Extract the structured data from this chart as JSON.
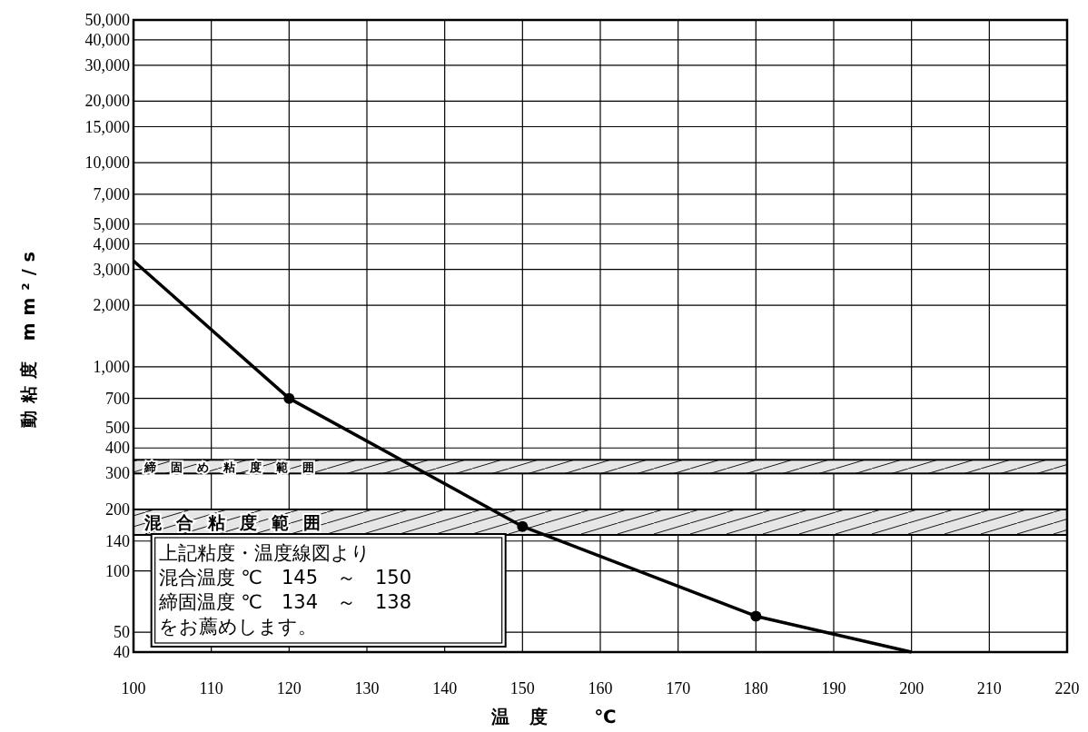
{
  "chart_data": {
    "type": "line",
    "xlabel": "温度 ℃",
    "ylabel": "動粘度 mm²/s",
    "xlim": [
      100,
      220
    ],
    "xticks": [
      100,
      110,
      120,
      130,
      140,
      150,
      160,
      170,
      180,
      190,
      200,
      210,
      220
    ],
    "ylim": [
      40,
      50000
    ],
    "yticks": [
      40,
      50,
      100,
      140,
      200,
      300,
      400,
      500,
      700,
      {
        "value": 1000,
        "label": "1,000"
      },
      {
        "value": 2000,
        "label": "2,000"
      },
      {
        "value": 3000,
        "label": "3,000"
      },
      {
        "value": 4000,
        "label": "4,000"
      },
      {
        "value": 5000,
        "label": "5,000"
      },
      {
        "value": 7000,
        "label": "7,000"
      },
      {
        "value": 10000,
        "label": "10,000"
      },
      {
        "value": 15000,
        "label": "15,000"
      },
      {
        "value": 20000,
        "label": "20,000"
      },
      {
        "value": 30000,
        "label": "30,000"
      },
      {
        "value": 40000,
        "label": "40,000"
      },
      {
        "value": 50000,
        "label": "50,000"
      }
    ],
    "log": "y",
    "grid": true,
    "series": [
      {
        "type": "line",
        "color": "#000000",
        "x": [
          100,
          120,
          150,
          180,
          200
        ],
        "values": [
          3300,
          700,
          165,
          60,
          40
        ]
      },
      {
        "type": "scatter",
        "color": "#000000",
        "marker": "circle",
        "x": [
          120,
          150,
          180
        ],
        "values": [
          700,
          165,
          60
        ]
      }
    ],
    "bands": [
      {
        "axis": "y",
        "from": 300,
        "to": 350,
        "label": "締固め粘度範囲"
      },
      {
        "axis": "y",
        "from": 150,
        "to": 200,
        "label": "混合粘度範囲"
      }
    ],
    "annotations": [
      "上記粘度・温度線図より",
      "混合温度 ℃　145　～　150",
      "締固温度 ℃　134　～　138",
      "をお薦めします。"
    ]
  }
}
